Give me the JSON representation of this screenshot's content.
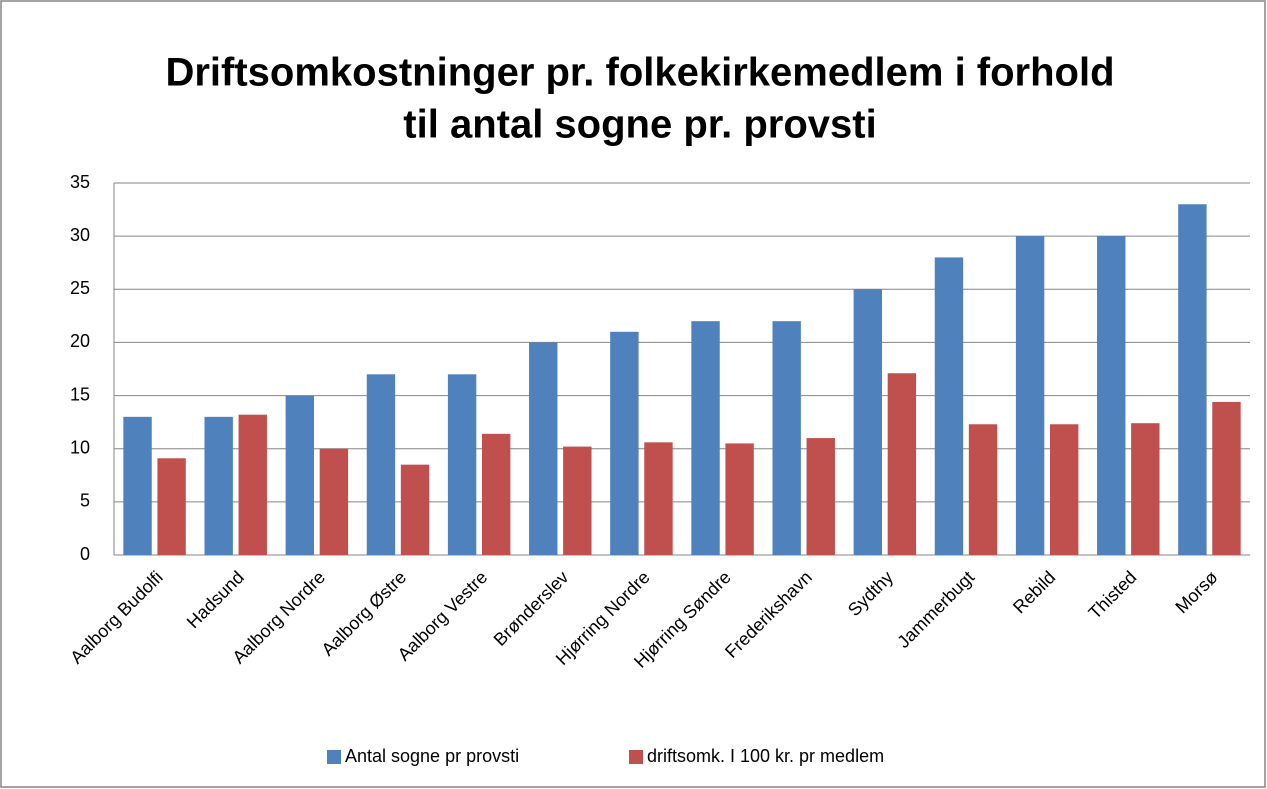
{
  "chart_data": {
    "type": "bar",
    "title": [
      "Driftsomkostninger pr. folkekirkemedlem i forhold",
      "til antal sogne pr. provsti"
    ],
    "categories": [
      "Aalborg Budolfi",
      "Hadsund",
      "Aalborg Nordre",
      "Aalborg Østre",
      "Aalborg Vestre",
      "Brønderslev",
      "Hjørring Nordre",
      "Hjørring Søndre",
      "Frederikshavn",
      "Sydthy",
      "Jammerbugt",
      "Rebild",
      "Thisted",
      "Morsø"
    ],
    "series": [
      {
        "name": "Antal sogne pr provsti",
        "color": "#4f81bd",
        "values": [
          13,
          13,
          15,
          17,
          17,
          20,
          21,
          22,
          22,
          25,
          28,
          30,
          30,
          33
        ]
      },
      {
        "name": "driftsomk. I 100 kr. pr medlem",
        "color": "#c0504d",
        "values": [
          9.1,
          13.2,
          10,
          8.5,
          11.4,
          10.2,
          10.6,
          10.5,
          11,
          17.1,
          12.3,
          12.3,
          12.4,
          14.4
        ]
      }
    ],
    "ylim": [
      0,
      35
    ],
    "yticks": [
      0,
      5,
      10,
      15,
      20,
      25,
      30,
      35
    ],
    "grid": true,
    "legend": "bottom"
  }
}
